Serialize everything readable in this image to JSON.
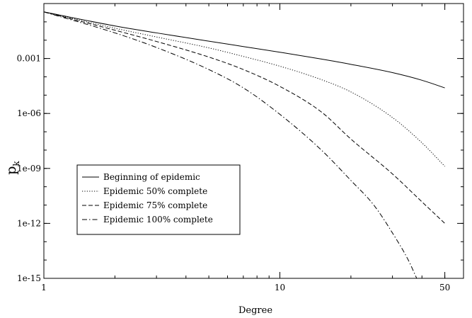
{
  "chart_data": {
    "type": "line",
    "xlabel": "Degree",
    "ylabel": "p",
    "ylabel_subscript": "k",
    "x_scale": "log",
    "y_scale": "log",
    "xlim": [
      1,
      60
    ],
    "ylim": [
      1e-15,
      1
    ],
    "x_ticks": [
      {
        "value": 1,
        "label": "1"
      },
      {
        "value": 10,
        "label": "10"
      },
      {
        "value": 50,
        "label": "50"
      }
    ],
    "y_ticks": [
      {
        "value": 1e-15,
        "label": "1e-15"
      },
      {
        "value": 1e-12,
        "label": "1e-12"
      },
      {
        "value": 1e-09,
        "label": "1e-09"
      },
      {
        "value": 1e-06,
        "label": "1e-06"
      },
      {
        "value": 0.001,
        "label": "0.001"
      }
    ],
    "legend_position": "left-middle",
    "grid": false,
    "series": [
      {
        "name": "Beginning of epidemic",
        "dash": "solid",
        "x": [
          1,
          2,
          3,
          5,
          7,
          10,
          15,
          20,
          30,
          40,
          50
        ],
        "y": [
          0.35,
          0.06,
          0.025,
          0.0088,
          0.0045,
          0.0022,
          0.00093,
          0.00048,
          0.00017,
          6.5e-05,
          2.5e-05
        ]
      },
      {
        "name": "Epidemic 50% complete",
        "dash": "dotted",
        "x": [
          1,
          2,
          3,
          5,
          7,
          10,
          15,
          20,
          30,
          40,
          50
        ],
        "y": [
          0.35,
          0.045,
          0.015,
          0.0038,
          0.0013,
          0.00038,
          7e-05,
          1.5e-05,
          6e-07,
          2.5e-08,
          1.3e-09
        ]
      },
      {
        "name": "Epidemic 75% complete",
        "dash": "dashed",
        "x": [
          1,
          2,
          3,
          5,
          7,
          10,
          15,
          20,
          30,
          40,
          50
        ],
        "y": [
          0.35,
          0.035,
          0.0085,
          0.0012,
          0.00025,
          3e-05,
          1.2e-06,
          4e-08,
          5e-10,
          1.5e-11,
          1e-12
        ]
      },
      {
        "name": "Epidemic 100% complete",
        "dash": "dashdot",
        "x": [
          1,
          2,
          3,
          5,
          7,
          10,
          15,
          20,
          25,
          30,
          35,
          38
        ],
        "y": [
          0.35,
          0.025,
          0.004,
          0.00025,
          2.5e-05,
          9e-07,
          1e-08,
          2.2e-10,
          1e-11,
          3e-13,
          1e-14,
          1e-15
        ]
      }
    ]
  }
}
